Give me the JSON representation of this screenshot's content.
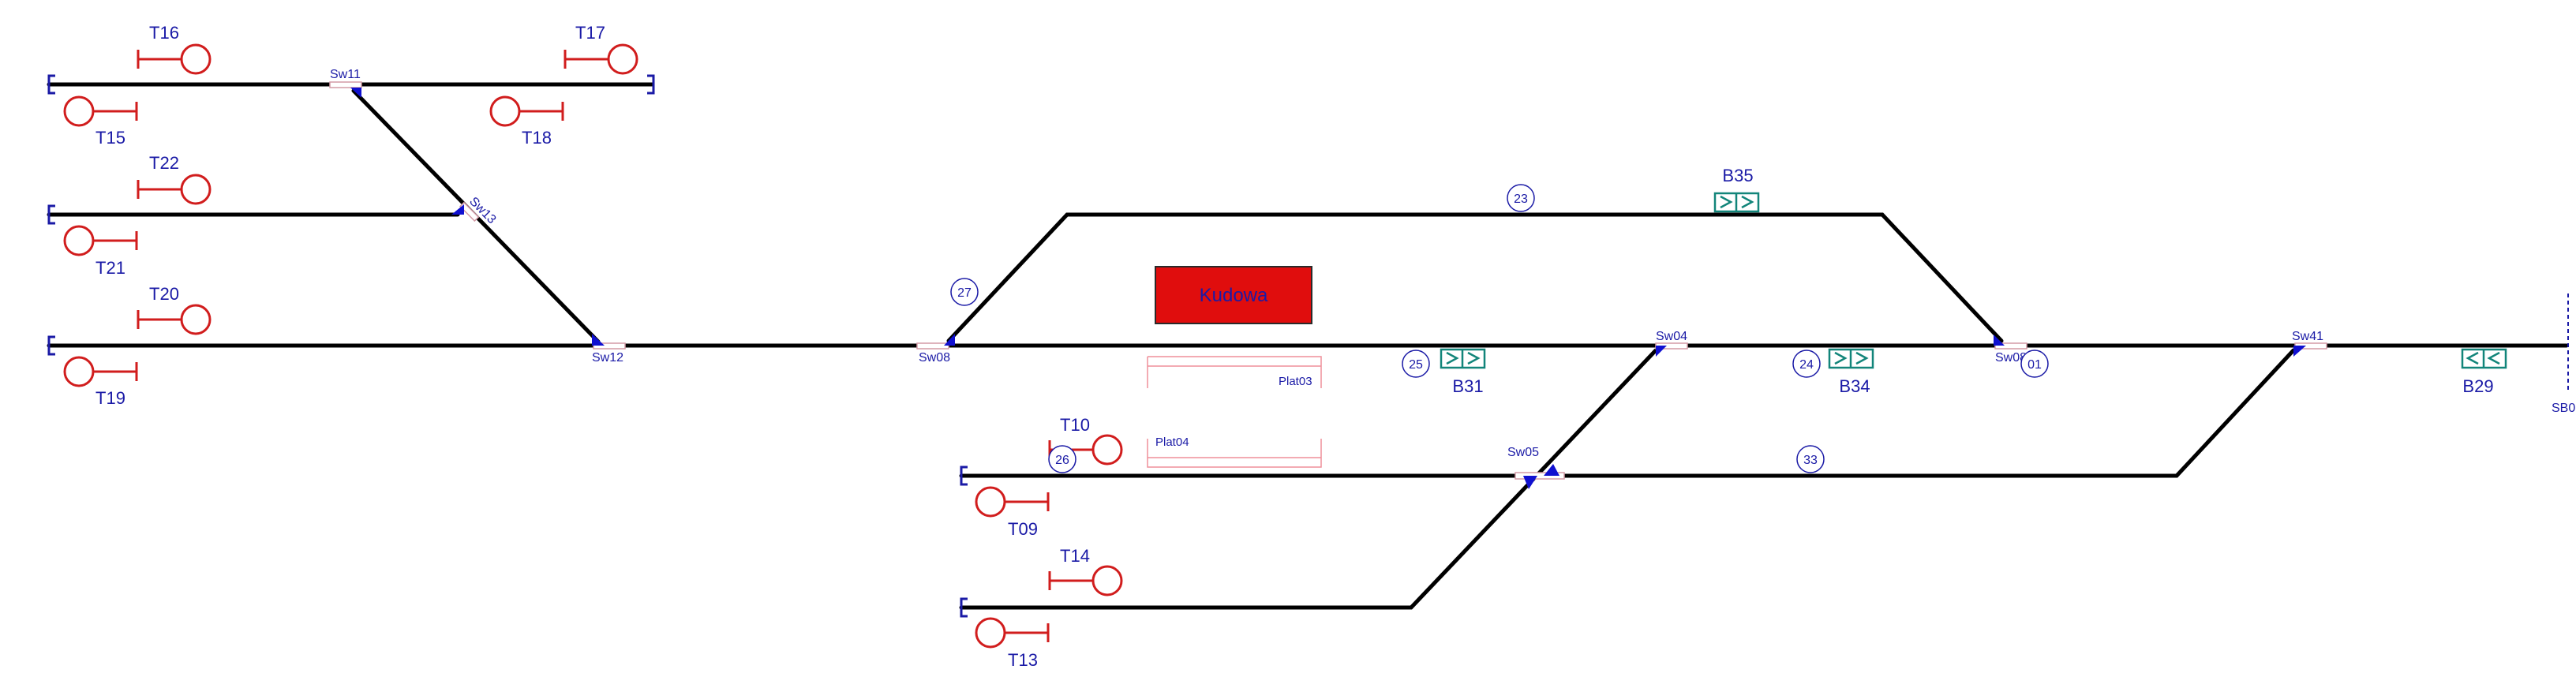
{
  "station": {
    "name": "Kudowa",
    "color": "#e00d0d"
  },
  "signals": [
    {
      "id": "T16",
      "label": "T16"
    },
    {
      "id": "T17",
      "label": "T17"
    },
    {
      "id": "T15",
      "label": "T15"
    },
    {
      "id": "T18",
      "label": "T18"
    },
    {
      "id": "T22",
      "label": "T22"
    },
    {
      "id": "T21",
      "label": "T21"
    },
    {
      "id": "T20",
      "label": "T20"
    },
    {
      "id": "T19",
      "label": "T19"
    },
    {
      "id": "T10",
      "label": "T10"
    },
    {
      "id": "T09",
      "label": "T09"
    },
    {
      "id": "T14",
      "label": "T14"
    },
    {
      "id": "T13",
      "label": "T13"
    }
  ],
  "switches": [
    {
      "id": "Sw11",
      "label": "Sw11"
    },
    {
      "id": "Sw13",
      "label": "Sw13"
    },
    {
      "id": "Sw12",
      "label": "Sw12"
    },
    {
      "id": "Sw08a",
      "label": "Sw08"
    },
    {
      "id": "Sw04",
      "label": "Sw04"
    },
    {
      "id": "Sw05",
      "label": "Sw05"
    },
    {
      "id": "Sw08b",
      "label": "Sw08"
    },
    {
      "id": "Sw41",
      "label": "Sw41"
    }
  ],
  "sections": [
    {
      "id": "s23",
      "label": "23"
    },
    {
      "id": "s27",
      "label": "27"
    },
    {
      "id": "s25",
      "label": "25"
    },
    {
      "id": "s24",
      "label": "24"
    },
    {
      "id": "s01",
      "label": "01"
    },
    {
      "id": "s26",
      "label": "26"
    },
    {
      "id": "s33",
      "label": "33"
    }
  ],
  "blocks": [
    {
      "id": "B35",
      "label": "B35",
      "direction": "right"
    },
    {
      "id": "B31",
      "label": "B31",
      "direction": "right"
    },
    {
      "id": "B34",
      "label": "B34",
      "direction": "right"
    },
    {
      "id": "B29",
      "label": "B29",
      "direction": "left"
    }
  ],
  "platforms": [
    {
      "id": "Plat03",
      "label": "Plat03"
    },
    {
      "id": "Plat04",
      "label": "Plat04"
    }
  ],
  "edge_label": "SB0",
  "colors": {
    "track": "#000000",
    "signal": "#d11d1d",
    "label": "#1a1aa6",
    "block": "#12857a",
    "switch_marker": "#1010d0",
    "platform": "#ef8f9a"
  }
}
